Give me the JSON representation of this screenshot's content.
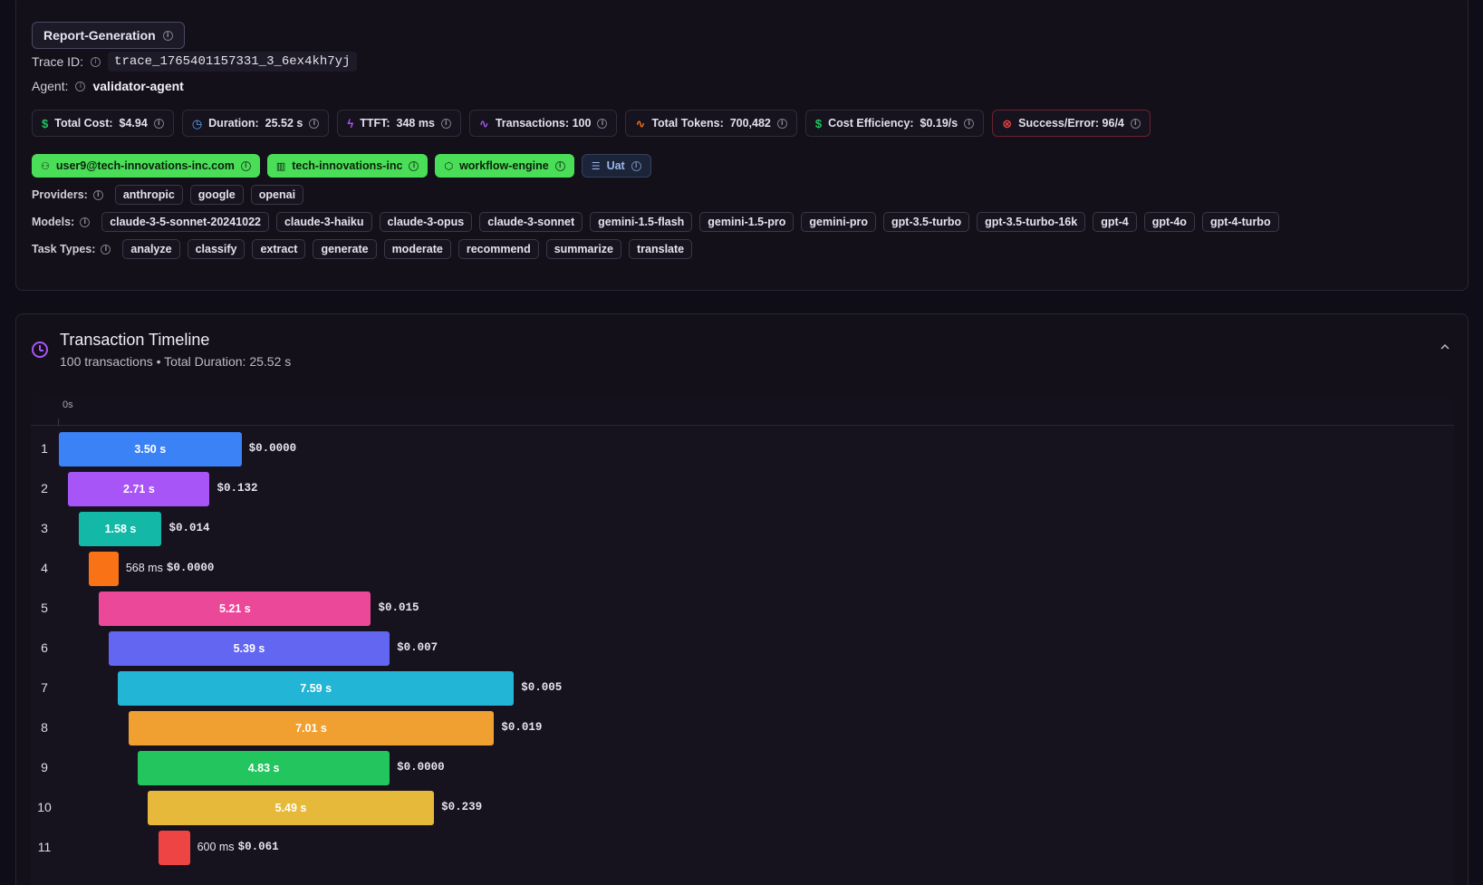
{
  "header": {
    "title": "Report-Generation",
    "trace_label": "Trace ID:",
    "trace_id": "trace_1765401157331_3_6ex4kh7yj",
    "agent_label": "Agent:",
    "agent": "validator-agent"
  },
  "metrics": [
    {
      "icon": "dollar-icon",
      "glyph": "$",
      "color": "#22c55e",
      "text": "Total Cost:  $4.94"
    },
    {
      "icon": "clock-icon",
      "glyph": "◷",
      "color": "#60a5fa",
      "text": "Duration:  25.52 s"
    },
    {
      "icon": "bolt-icon",
      "glyph": "ϟ",
      "color": "#a855f7",
      "text": "TTFT:  348 ms"
    },
    {
      "icon": "activity-icon",
      "glyph": "∿",
      "color": "#a855f7",
      "text": "Transactions: 100"
    },
    {
      "icon": "activity-icon",
      "glyph": "∿",
      "color": "#f97316",
      "text": "Total Tokens:  700,482"
    },
    {
      "icon": "dollar-icon",
      "glyph": "$",
      "color": "#22c55e",
      "text": "Cost Efficiency:  $0.19/s"
    },
    {
      "icon": "x-circle-icon",
      "glyph": "⊗",
      "color": "#ef4444",
      "text": "Success/Error: 96/4"
    }
  ],
  "tags": {
    "user": "user9@tech-innovations-inc.com",
    "org": "tech-innovations-inc",
    "workflow": "workflow-engine",
    "env": "Uat"
  },
  "providers_label": "Providers:",
  "providers": [
    "anthropic",
    "google",
    "openai"
  ],
  "models_label": "Models:",
  "models": [
    "claude-3-5-sonnet-20241022",
    "claude-3-haiku",
    "claude-3-opus",
    "claude-3-sonnet",
    "gemini-1.5-flash",
    "gemini-1.5-pro",
    "gemini-pro",
    "gpt-3.5-turbo",
    "gpt-3.5-turbo-16k",
    "gpt-4",
    "gpt-4o",
    "gpt-4-turbo"
  ],
  "task_types_label": "Task Types:",
  "task_types": [
    "analyze",
    "classify",
    "extract",
    "generate",
    "moderate",
    "recommend",
    "summarize",
    "translate"
  ],
  "timeline": {
    "title": "Transaction Timeline",
    "subtitle": "100 transactions • Total Duration: 25.52 s",
    "axis_start": "0s",
    "rows": [
      {
        "num": "1",
        "duration": "3.50 s",
        "cost": "$0.0000",
        "start_s": 0.0,
        "dur_s": 3.5,
        "color": "#3b82f6"
      },
      {
        "num": "2",
        "duration": "2.71 s",
        "cost": "$0.132",
        "start_s": 0.18,
        "dur_s": 2.71,
        "color": "#a855f7"
      },
      {
        "num": "3",
        "duration": "1.58 s",
        "cost": "$0.014",
        "start_s": 0.39,
        "dur_s": 1.58,
        "color": "#14b8a6"
      },
      {
        "num": "4",
        "duration": "568 ms",
        "cost": "$0.0000",
        "start_s": 0.57,
        "dur_s": 0.568,
        "color": "#f97316"
      },
      {
        "num": "5",
        "duration": "5.21 s",
        "cost": "$0.015",
        "start_s": 0.77,
        "dur_s": 5.21,
        "color": "#ec4899"
      },
      {
        "num": "6",
        "duration": "5.39 s",
        "cost": "$0.007",
        "start_s": 0.95,
        "dur_s": 5.39,
        "color": "#6366f1"
      },
      {
        "num": "7",
        "duration": "7.59 s",
        "cost": "$0.005",
        "start_s": 1.13,
        "dur_s": 7.59,
        "color": "#22b5d6"
      },
      {
        "num": "8",
        "duration": "7.01 s",
        "cost": "$0.019",
        "start_s": 1.33,
        "dur_s": 7.01,
        "color": "#f0a030"
      },
      {
        "num": "9",
        "duration": "4.83 s",
        "cost": "$0.0000",
        "start_s": 1.51,
        "dur_s": 4.83,
        "color": "#22c55e"
      },
      {
        "num": "10",
        "duration": "5.49 s",
        "cost": "$0.239",
        "start_s": 1.7,
        "dur_s": 5.49,
        "color": "#e6b93a"
      },
      {
        "num": "11",
        "duration": "600 ms",
        "cost": "$0.061",
        "start_s": 1.91,
        "dur_s": 0.6,
        "color": "#ef4444"
      }
    ]
  }
}
